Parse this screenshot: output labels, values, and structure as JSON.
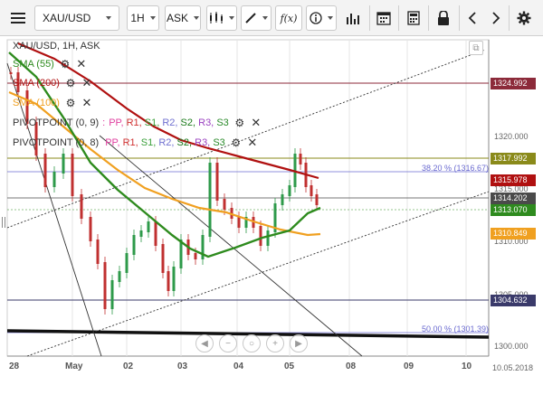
{
  "toolbar": {
    "menu_icon": "hamburger-icon",
    "symbol": "XAU/USD",
    "timeframe": "1H",
    "price_type": "ASK",
    "icons": [
      "candles-icon",
      "draw-icon",
      "function-icon",
      "info-icon",
      "volume-bars-icon",
      "calendar-icon",
      "calculator-icon",
      "lock-icon",
      "chevron-left-icon",
      "chevron-right-icon",
      "gear-icon"
    ],
    "fx_label": "f(x)"
  },
  "legend": {
    "title": "XAU/USD, 1H, ASK",
    "indicators": [
      {
        "label": "SMA (55)",
        "color": "#2e8b1e"
      },
      {
        "label": "SMA (200)",
        "color": "#b01010"
      },
      {
        "label": "SMA (100)",
        "color": "#f0a020"
      }
    ],
    "pivots": [
      {
        "prefix": "PIVOTPOINT (0, 9)",
        "sep": ":",
        "parts": [
          "PP,",
          "R1,",
          "S1,",
          "R2,",
          "S2,",
          "R3,",
          "S3"
        ]
      },
      {
        "prefix": "PIVOTPOINT (0, 8)",
        "sep": "",
        "parts": [
          "PP,",
          "R1,",
          "S1,",
          "R2,",
          "S2,",
          "R3,",
          "S3"
        ]
      }
    ],
    "pivot_colors": [
      "#e040a0",
      "#d03030",
      "#3aa03a",
      "#7070d0",
      "#1a7a1a",
      "#9a40c0",
      "#2a8a2a"
    ]
  },
  "price_axis": {
    "ticks": [
      "1320.000",
      "1315.000",
      "1310.000",
      "1305.000",
      "1300.000"
    ]
  },
  "price_tags": [
    {
      "value": "1324.992",
      "color": "#8c2a3a"
    },
    {
      "value": "1317.992",
      "color": "#8a8a1a"
    },
    {
      "value": "1315.978",
      "color": "#b01010"
    },
    {
      "value": "1314.202",
      "color": "#4a4a4a"
    },
    {
      "value": "1313.070",
      "color": "#2e8b1e"
    },
    {
      "value": "1310.849",
      "color": "#f0a020"
    },
    {
      "value": "1304.632",
      "color": "#3a3a6a"
    }
  ],
  "fib_labels": [
    {
      "text": "38.20 % (1316.67)"
    },
    {
      "text": "50.00 % (1301.39)"
    }
  ],
  "x_axis": {
    "labels": [
      "28",
      "May",
      "02",
      "03",
      "04",
      "05",
      "08",
      "09",
      "10"
    ],
    "date_label": "10.05.2018"
  },
  "nav_controls": [
    "pan-left-icon",
    "zoom-out-icon",
    "zoom-reset-icon",
    "zoom-in-icon",
    "pan-right-icon"
  ]
}
